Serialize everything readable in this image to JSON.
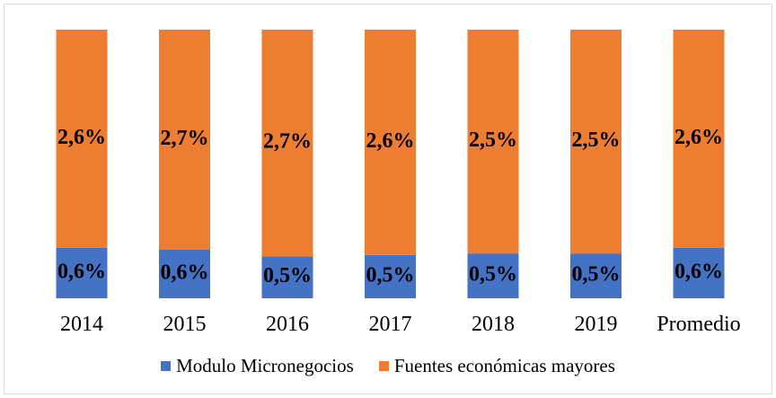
{
  "chart_data": {
    "type": "bar",
    "stacked": true,
    "normalized": true,
    "categories": [
      "2014",
      "2015",
      "2016",
      "2017",
      "2018",
      "2019",
      "Promedio"
    ],
    "series": [
      {
        "name": "Modulo Micronegocios",
        "color": "#4472C4",
        "values": [
          0.6,
          0.6,
          0.5,
          0.5,
          0.5,
          0.5,
          0.6
        ],
        "labels": [
          "0,6%",
          "0,6%",
          "0,5%",
          "0,5%",
          "0,5%",
          "0,5%",
          "0,6%"
        ]
      },
      {
        "name": "Fuentes económicas mayores",
        "color": "#ED7D31",
        "values": [
          2.6,
          2.7,
          2.7,
          2.6,
          2.5,
          2.5,
          2.6
        ],
        "labels": [
          "2,6%",
          "2,7%",
          "2,7%",
          "2,6%",
          "2,5%",
          "2,5%",
          "2,6%"
        ]
      }
    ],
    "legend_position": "bottom",
    "grid": false
  }
}
